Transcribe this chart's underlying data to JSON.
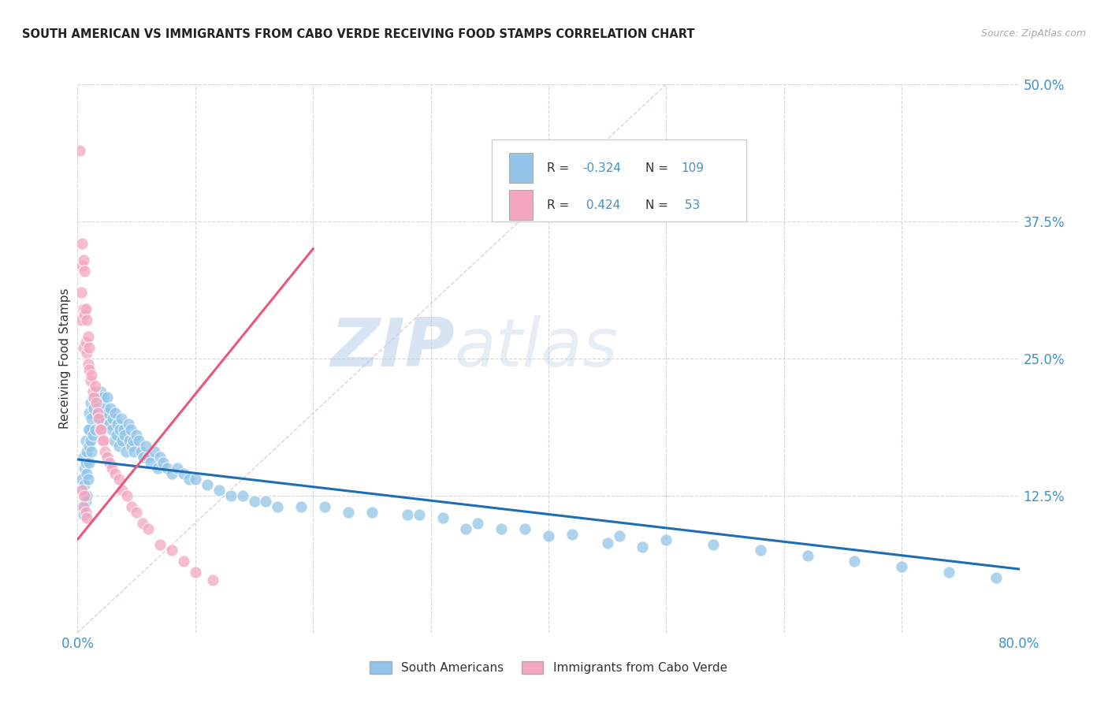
{
  "title": "SOUTH AMERICAN VS IMMIGRANTS FROM CABO VERDE RECEIVING FOOD STAMPS CORRELATION CHART",
  "source": "Source: ZipAtlas.com",
  "ylabel": "Receiving Food Stamps",
  "ytick_labels": [
    "12.5%",
    "25.0%",
    "37.5%",
    "50.0%"
  ],
  "legend_label1": "South Americans",
  "legend_label2": "Immigrants from Cabo Verde",
  "color_blue": "#92C5E8",
  "color_pink": "#F4A6C0",
  "color_blue_line": "#1E6EB5",
  "color_pink_line": "#E8587A",
  "color_diag": "#E0B8C0",
  "color_text_blue": "#4292c6",
  "color_grid": "#cccccc",
  "watermark_zip": "ZIP",
  "watermark_atlas": "atlas",
  "xlim": [
    0.0,
    0.8
  ],
  "ylim": [
    0.0,
    0.5
  ],
  "blue_scatter_x": [
    0.003,
    0.004,
    0.004,
    0.005,
    0.005,
    0.005,
    0.006,
    0.006,
    0.007,
    0.007,
    0.007,
    0.008,
    0.008,
    0.008,
    0.009,
    0.009,
    0.01,
    0.01,
    0.01,
    0.01,
    0.011,
    0.011,
    0.012,
    0.012,
    0.013,
    0.013,
    0.014,
    0.015,
    0.015,
    0.016,
    0.017,
    0.018,
    0.019,
    0.02,
    0.021,
    0.022,
    0.023,
    0.024,
    0.025,
    0.026,
    0.027,
    0.028,
    0.029,
    0.03,
    0.031,
    0.032,
    0.033,
    0.034,
    0.035,
    0.036,
    0.037,
    0.038,
    0.039,
    0.04,
    0.041,
    0.043,
    0.044,
    0.045,
    0.046,
    0.047,
    0.048,
    0.05,
    0.052,
    0.054,
    0.056,
    0.058,
    0.06,
    0.062,
    0.065,
    0.068,
    0.07,
    0.073,
    0.076,
    0.08,
    0.085,
    0.09,
    0.095,
    0.1,
    0.11,
    0.12,
    0.13,
    0.14,
    0.15,
    0.16,
    0.17,
    0.19,
    0.21,
    0.23,
    0.25,
    0.28,
    0.31,
    0.34,
    0.38,
    0.42,
    0.46,
    0.5,
    0.54,
    0.58,
    0.62,
    0.66,
    0.7,
    0.74,
    0.78,
    0.36,
    0.29,
    0.33,
    0.4,
    0.45,
    0.48
  ],
  "blue_scatter_y": [
    0.13,
    0.14,
    0.115,
    0.16,
    0.125,
    0.108,
    0.15,
    0.135,
    0.175,
    0.155,
    0.12,
    0.165,
    0.145,
    0.125,
    0.185,
    0.14,
    0.2,
    0.185,
    0.17,
    0.155,
    0.21,
    0.175,
    0.195,
    0.165,
    0.215,
    0.18,
    0.205,
    0.215,
    0.185,
    0.22,
    0.2,
    0.21,
    0.195,
    0.22,
    0.19,
    0.215,
    0.205,
    0.195,
    0.215,
    0.2,
    0.19,
    0.205,
    0.185,
    0.195,
    0.175,
    0.2,
    0.18,
    0.19,
    0.17,
    0.185,
    0.195,
    0.175,
    0.185,
    0.18,
    0.165,
    0.19,
    0.175,
    0.185,
    0.17,
    0.175,
    0.165,
    0.18,
    0.175,
    0.165,
    0.16,
    0.17,
    0.16,
    0.155,
    0.165,
    0.15,
    0.16,
    0.155,
    0.15,
    0.145,
    0.15,
    0.145,
    0.14,
    0.14,
    0.135,
    0.13,
    0.125,
    0.125,
    0.12,
    0.12,
    0.115,
    0.115,
    0.115,
    0.11,
    0.11,
    0.108,
    0.105,
    0.1,
    0.095,
    0.09,
    0.088,
    0.085,
    0.08,
    0.075,
    0.07,
    0.065,
    0.06,
    0.055,
    0.05,
    0.095,
    0.108,
    0.095,
    0.088,
    0.082,
    0.078
  ],
  "pink_scatter_x": [
    0.002,
    0.003,
    0.003,
    0.004,
    0.004,
    0.005,
    0.005,
    0.005,
    0.006,
    0.006,
    0.007,
    0.007,
    0.008,
    0.008,
    0.009,
    0.009,
    0.01,
    0.01,
    0.011,
    0.012,
    0.013,
    0.014,
    0.015,
    0.016,
    0.017,
    0.018,
    0.019,
    0.02,
    0.021,
    0.022,
    0.023,
    0.025,
    0.027,
    0.029,
    0.032,
    0.035,
    0.038,
    0.042,
    0.046,
    0.05,
    0.055,
    0.06,
    0.07,
    0.08,
    0.09,
    0.1,
    0.115,
    0.004,
    0.005,
    0.006,
    0.007,
    0.008
  ],
  "pink_scatter_y": [
    0.44,
    0.31,
    0.285,
    0.355,
    0.335,
    0.34,
    0.295,
    0.26,
    0.33,
    0.29,
    0.295,
    0.265,
    0.285,
    0.255,
    0.27,
    0.245,
    0.26,
    0.24,
    0.23,
    0.235,
    0.22,
    0.215,
    0.225,
    0.21,
    0.2,
    0.195,
    0.185,
    0.185,
    0.175,
    0.175,
    0.165,
    0.16,
    0.155,
    0.15,
    0.145,
    0.14,
    0.13,
    0.125,
    0.115,
    0.11,
    0.1,
    0.095,
    0.08,
    0.075,
    0.065,
    0.055,
    0.048,
    0.13,
    0.115,
    0.125,
    0.11,
    0.105
  ],
  "blue_line_x": [
    0.0,
    0.8
  ],
  "blue_line_y": [
    0.158,
    0.058
  ],
  "pink_line_x": [
    0.0,
    0.2
  ],
  "pink_line_y": [
    0.085,
    0.35
  ],
  "diag_line_x": [
    0.0,
    0.5
  ],
  "diag_line_y": [
    0.0,
    0.5
  ]
}
